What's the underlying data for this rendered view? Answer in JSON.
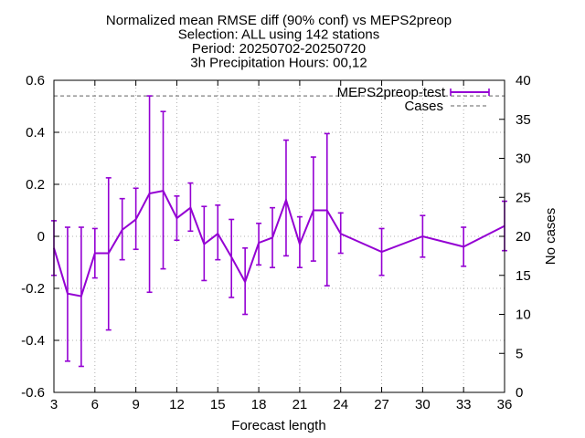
{
  "chart_data": {
    "type": "line",
    "title_lines": [
      "Normalized mean RMSE diff (90% conf) vs MEPS2preop",
      "Selection: ALL using   142 stations",
      "Period: 20250702-20250720",
      "3h Precipitation   Hours: 00,12"
    ],
    "xlabel": "Forecast length",
    "y2label": "No cases",
    "xlim": [
      3,
      36
    ],
    "ylim": [
      -0.6,
      0.6
    ],
    "y2lim": [
      0,
      40
    ],
    "xticks": [
      3,
      6,
      9,
      12,
      15,
      18,
      21,
      24,
      27,
      30,
      33,
      36
    ],
    "yticks": [
      -0.6,
      -0.4,
      -0.2,
      0,
      0.2,
      0.4,
      0.6
    ],
    "ytick_labels": [
      "-0.6",
      "-0.4",
      "-0.2",
      "0",
      "0.2",
      "0.4",
      "0.6"
    ],
    "y2ticks": [
      0,
      5,
      10,
      15,
      20,
      25,
      30,
      35,
      40
    ],
    "grid": true,
    "legend_position": "top-right",
    "series": [
      {
        "name": "MEPS2preop-test",
        "color": "#9400d3",
        "style": "line-errorbars",
        "x": [
          3,
          4,
          5,
          6,
          7,
          8,
          9,
          10,
          11,
          12,
          13,
          14,
          15,
          16,
          17,
          18,
          19,
          20,
          21,
          22,
          23,
          24,
          27,
          30,
          33,
          36
        ],
        "y": [
          -0.045,
          -0.22,
          -0.23,
          -0.065,
          -0.065,
          0.025,
          0.065,
          0.165,
          0.175,
          0.07,
          0.11,
          -0.03,
          0.01,
          -0.08,
          -0.175,
          -0.025,
          -0.005,
          0.14,
          -0.03,
          0.1,
          0.1,
          0.01,
          -0.06,
          0.0,
          -0.04,
          0.04
        ],
        "ylow": [
          -0.15,
          -0.48,
          -0.5,
          -0.16,
          -0.36,
          -0.09,
          -0.05,
          -0.215,
          -0.125,
          -0.015,
          0.02,
          -0.17,
          -0.09,
          -0.235,
          -0.3,
          -0.11,
          -0.12,
          -0.075,
          -0.12,
          -0.095,
          -0.19,
          -0.065,
          -0.15,
          -0.08,
          -0.115,
          -0.055
        ],
        "yhigh": [
          0.06,
          0.035,
          0.035,
          0.03,
          0.225,
          0.145,
          0.185,
          0.54,
          0.48,
          0.155,
          0.205,
          0.115,
          0.12,
          0.065,
          -0.045,
          0.05,
          0.11,
          0.37,
          0.075,
          0.305,
          0.395,
          0.09,
          0.03,
          0.08,
          0.035,
          0.135
        ]
      },
      {
        "name": "Cases",
        "color": "#808080",
        "style": "dashed",
        "axis": "y2",
        "x": [
          3,
          36
        ],
        "y": [
          38,
          38
        ]
      }
    ]
  }
}
